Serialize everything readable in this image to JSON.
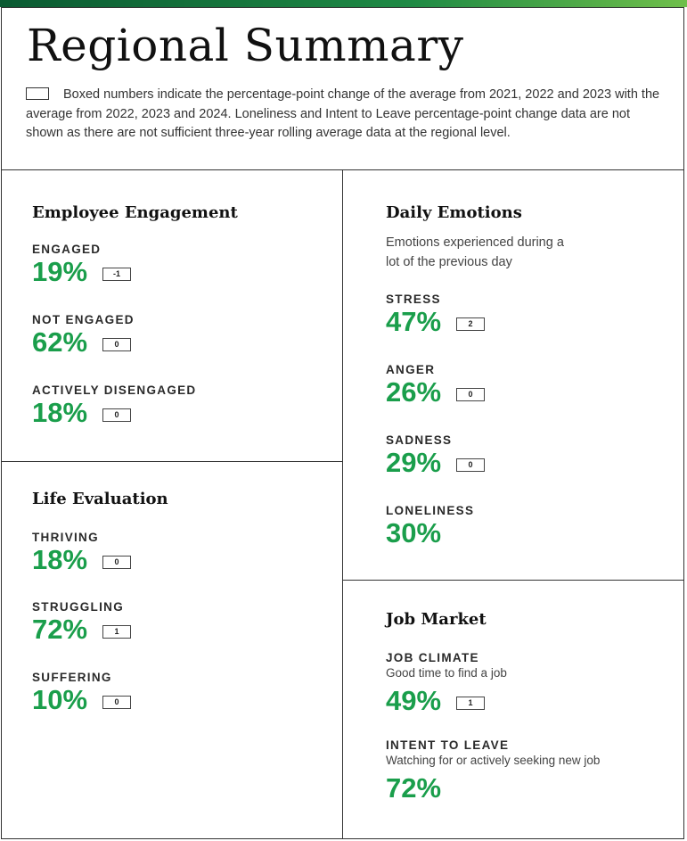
{
  "title": "Regional Summary",
  "note": "Boxed numbers indicate the percentage-point change of the average from 2021, 2022 and 2023 with the average from 2022, 2023 and 2024. Loneliness and Intent to Leave percentage-point change data are not shown as there are not sufficient three-year rolling average data at the regional level.",
  "colors": {
    "accent": "#1a9e4b",
    "bar_dark": "#0a5a32",
    "bar_light": "#6fbf4a"
  },
  "engagement": {
    "title": "Employee Engagement",
    "metrics": [
      {
        "label": "ENGAGED",
        "value": "19%",
        "change": "-1"
      },
      {
        "label": "NOT ENGAGED",
        "value": "62%",
        "change": "0"
      },
      {
        "label": "ACTIVELY DISENGAGED",
        "value": "18%",
        "change": "0"
      }
    ]
  },
  "life": {
    "title": "Life Evaluation",
    "metrics": [
      {
        "label": "THRIVING",
        "value": "18%",
        "change": "0"
      },
      {
        "label": "STRUGGLING",
        "value": "72%",
        "change": "1"
      },
      {
        "label": "SUFFERING",
        "value": "10%",
        "change": "0"
      }
    ]
  },
  "emotions": {
    "title": "Daily Emotions",
    "subtitle": "Emotions experienced during a lot of the previous day",
    "metrics": [
      {
        "label": "STRESS",
        "value": "47%",
        "change": "2"
      },
      {
        "label": "ANGER",
        "value": "26%",
        "change": "0"
      },
      {
        "label": "SADNESS",
        "value": "29%",
        "change": "0"
      },
      {
        "label": "LONELINESS",
        "value": "30%"
      }
    ]
  },
  "job": {
    "title": "Job Market",
    "metrics": [
      {
        "label": "JOB CLIMATE",
        "desc": "Good time to find a job",
        "value": "49%",
        "change": "1"
      },
      {
        "label": "INTENT TO LEAVE",
        "desc": "Watching for or actively seeking new job",
        "value": "72%"
      }
    ]
  }
}
